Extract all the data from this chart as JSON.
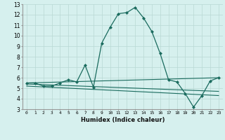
{
  "xlabel": "Humidex (Indice chaleur)",
  "ylabel": "",
  "bg_color": "#d6f0ee",
  "grid_color": "#b8d8d4",
  "line_color": "#1a6b5e",
  "xlim": [
    -0.5,
    23.5
  ],
  "ylim": [
    3,
    13
  ],
  "xticks": [
    0,
    1,
    2,
    3,
    4,
    5,
    6,
    7,
    8,
    9,
    10,
    11,
    12,
    13,
    14,
    15,
    16,
    17,
    18,
    19,
    20,
    21,
    22,
    23
  ],
  "yticks": [
    3,
    4,
    5,
    6,
    7,
    8,
    9,
    10,
    11,
    12,
    13
  ],
  "series": [
    {
      "x": [
        0,
        1,
        2,
        3,
        4,
        5,
        6,
        7,
        8,
        9,
        10,
        11,
        12,
        13,
        14,
        15,
        16,
        17,
        18,
        19,
        20,
        21,
        22,
        23
      ],
      "y": [
        5.5,
        5.5,
        5.2,
        5.2,
        5.5,
        5.8,
        5.6,
        7.2,
        5.1,
        9.3,
        10.8,
        12.1,
        12.2,
        12.7,
        11.7,
        10.4,
        8.3,
        5.8,
        5.6,
        4.5,
        3.2,
        4.3,
        5.7,
        6.0
      ],
      "marker": "D",
      "markersize": 2.0,
      "linewidth": 0.9
    },
    {
      "x": [
        0,
        23
      ],
      "y": [
        5.5,
        6.0
      ],
      "marker": null,
      "linewidth": 0.8
    },
    {
      "x": [
        0,
        23
      ],
      "y": [
        5.4,
        4.7
      ],
      "marker": null,
      "linewidth": 0.8
    },
    {
      "x": [
        0,
        23
      ],
      "y": [
        5.2,
        4.3
      ],
      "marker": null,
      "linewidth": 0.8
    }
  ]
}
